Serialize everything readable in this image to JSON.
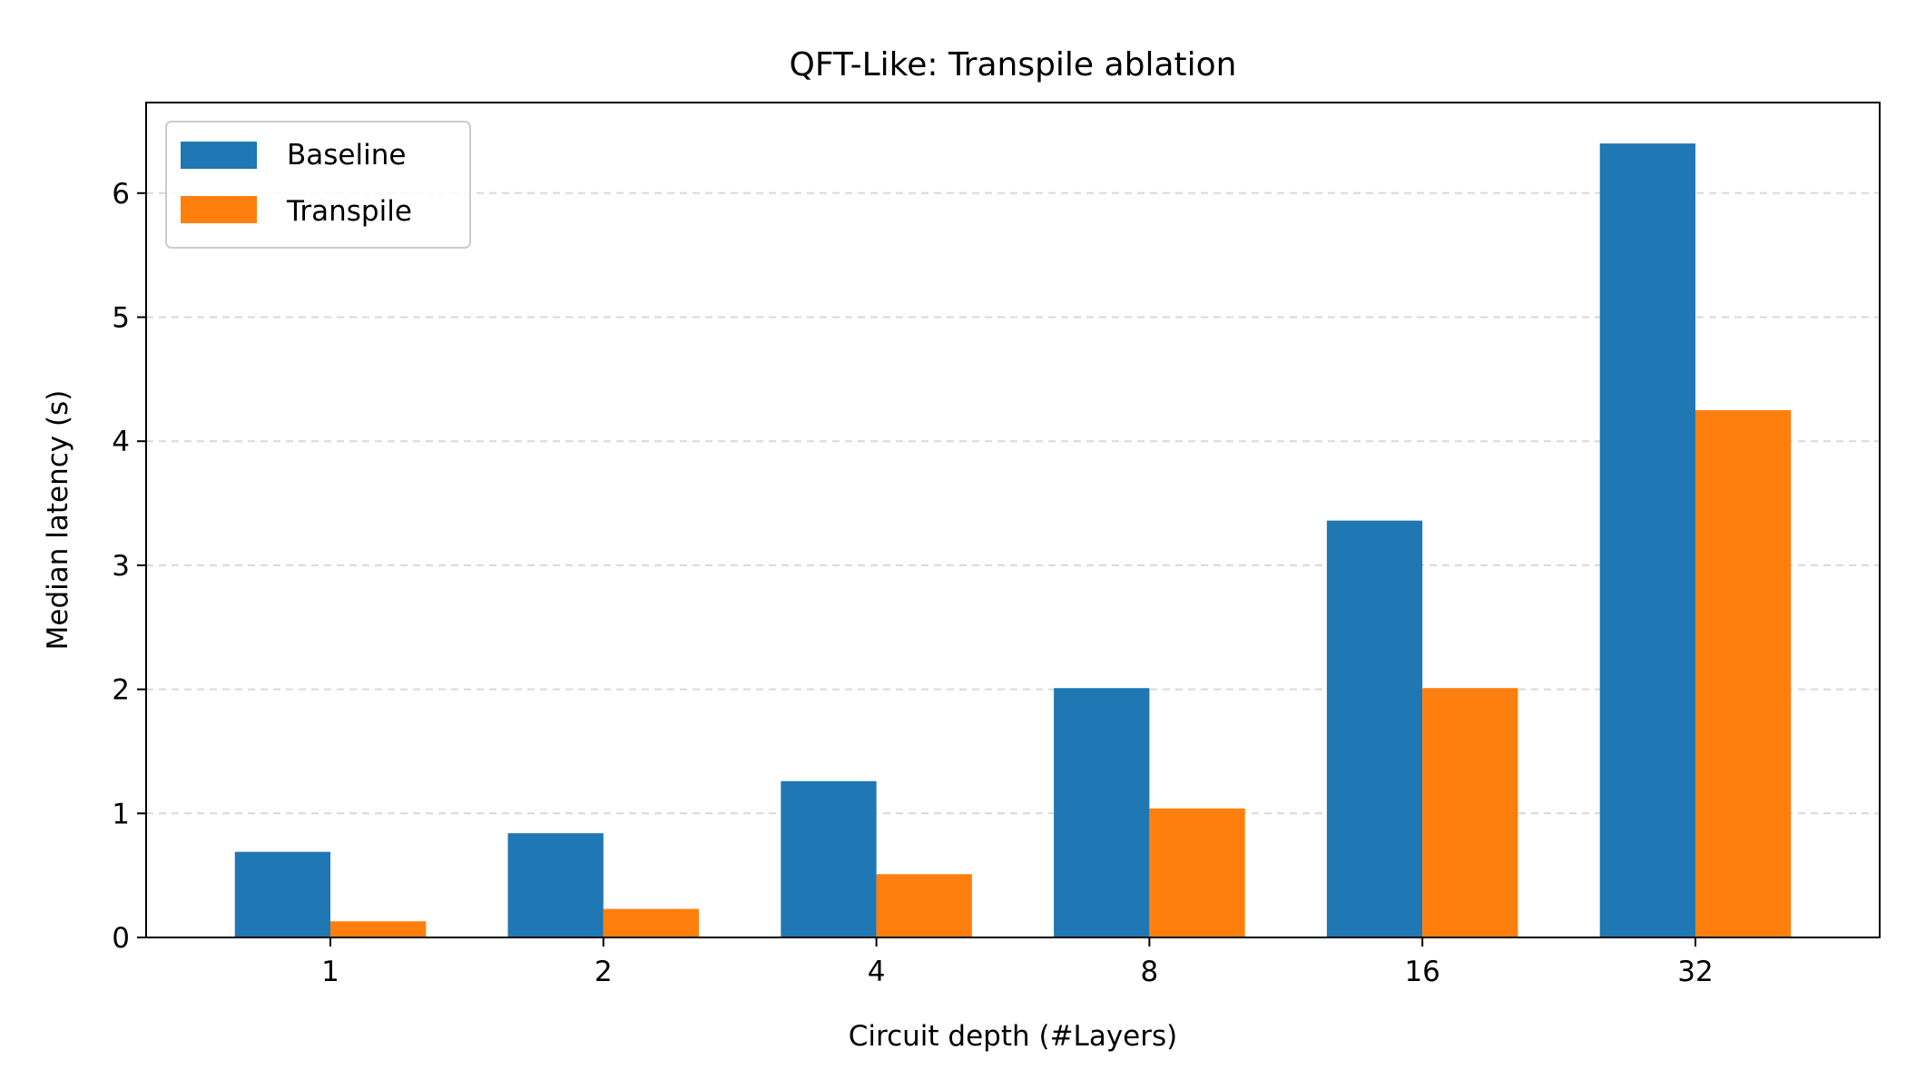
{
  "chart_data": {
    "type": "bar",
    "title": "QFT-Like: Transpile ablation",
    "xlabel": "Circuit depth (#Layers)",
    "ylabel": "Median latency (s)",
    "categories": [
      "1",
      "2",
      "4",
      "8",
      "16",
      "32"
    ],
    "series": [
      {
        "name": "Baseline",
        "color": "#1f77b4",
        "values": [
          0.69,
          0.84,
          1.26,
          2.01,
          3.36,
          6.4
        ]
      },
      {
        "name": "Transpile",
        "color": "#ff7f0e",
        "values": [
          0.13,
          0.23,
          0.51,
          1.04,
          2.01,
          4.25
        ]
      }
    ],
    "ylim": [
      0,
      6.73
    ],
    "yticks": [
      "0",
      "1",
      "2",
      "3",
      "4",
      "5",
      "6"
    ],
    "grid": "y-dashed",
    "legend_position": "top-left"
  }
}
